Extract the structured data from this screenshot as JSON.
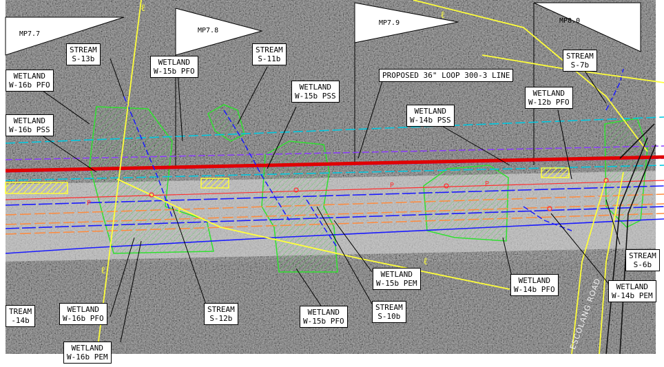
{
  "mileposts": [
    "MP7.7",
    "MP7.8",
    "MP7.9",
    "MP8.0"
  ],
  "pipeline_label": "PROPOSED 36\" LOOP 300-3 LINE",
  "road_label": "ESCOLANG ROAD",
  "line_markers": {
    "centerline": "ℓ",
    "power": "P"
  },
  "colors": {
    "proposed_line": "#e00000",
    "existing_line": "#1a1aff",
    "offset_line": "#ff8a3c",
    "row_line": "#00c8e0",
    "workspace": "#8b3bff",
    "road_centerline": "#ffff3a",
    "wetland": "#2fe02f",
    "stream": "#1a1aff",
    "hatch": "#ffff3a"
  },
  "features": [
    {
      "type": "STREAM",
      "id": "S-13b"
    },
    {
      "type": "STREAM",
      "id": "S-11b"
    },
    {
      "type": "STREAM",
      "id": "S-7b"
    },
    {
      "type": "WETLAND",
      "id": "W-16b  PFO"
    },
    {
      "type": "WETLAND",
      "id": "W-15b  PFO"
    },
    {
      "type": "WETLAND",
      "id": "W-15b  PSS"
    },
    {
      "type": "WETLAND",
      "id": "W-12b  PFO"
    },
    {
      "type": "WETLAND",
      "id": "W-16b  PSS"
    },
    {
      "type": "WETLAND",
      "id": "W-14b  PSS"
    },
    {
      "type": "STREAM",
      "id": "S-6b"
    },
    {
      "type": "WETLAND",
      "id": "W-15b  PEM"
    },
    {
      "type": "WETLAND",
      "id": "W-14b  PFO"
    },
    {
      "type": "WETLAND",
      "id": "W-14b  PEM"
    },
    {
      "type": "TREAM",
      "id": "-14b"
    },
    {
      "type": "WETLAND",
      "id": "W-16b  PFO"
    },
    {
      "type": "STREAM",
      "id": "S-12b"
    },
    {
      "type": "WETLAND",
      "id": "W-15b  PFO"
    },
    {
      "type": "STREAM",
      "id": "S-10b"
    },
    {
      "type": "WETLAND",
      "id": "W-16b  PEM"
    }
  ]
}
